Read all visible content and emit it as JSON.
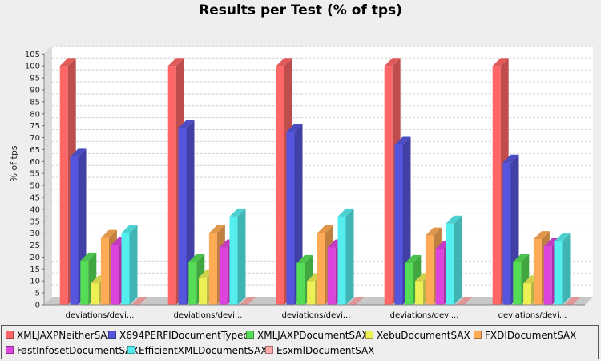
{
  "chart_data": {
    "type": "bar",
    "title": "Results per Test (% of tps)",
    "ylabel": "% of tps",
    "xlabel": "",
    "ylim": [
      0,
      105
    ],
    "ytick_step": 5,
    "grid": true,
    "legend_position": "bottom",
    "categories": [
      "deviations/devi...",
      "deviations/devi...",
      "deviations/devi...",
      "deviations/devi...",
      "deviations/devi..."
    ],
    "series": [
      {
        "name": "XMLJAXPNeitherSAX",
        "color": "#ff6666",
        "values": [
          100,
          100,
          100,
          100,
          100
        ]
      },
      {
        "name": "X694PERFIDocumentTyped",
        "color": "#5555dd",
        "values": [
          62,
          74,
          72.5,
          67,
          59.5
        ]
      },
      {
        "name": "XMLJAXPDocumentSAX",
        "color": "#55dd55",
        "values": [
          18.5,
          18,
          17.5,
          17.5,
          18
        ]
      },
      {
        "name": "XebuDocumentSAX",
        "color": "#eeee55",
        "values": [
          9,
          11.5,
          10,
          10,
          9
        ]
      },
      {
        "name": "FXDIDocumentSAX",
        "color": "#ffaa55",
        "values": [
          28,
          30,
          30,
          29,
          27.5
        ]
      },
      {
        "name": "FastInfosetDocumentSAX",
        "color": "#dd44dd",
        "values": [
          25,
          24,
          24,
          23.5,
          24.5
        ]
      },
      {
        "name": "EfficientXMLDocumentSAX",
        "color": "#55eeee",
        "values": [
          30,
          37,
          37,
          34,
          26.5
        ]
      },
      {
        "name": "EsxmlDocumentSAX",
        "color": "#ffaaaa",
        "values": [
          0,
          0,
          0,
          0,
          0
        ]
      }
    ]
  }
}
